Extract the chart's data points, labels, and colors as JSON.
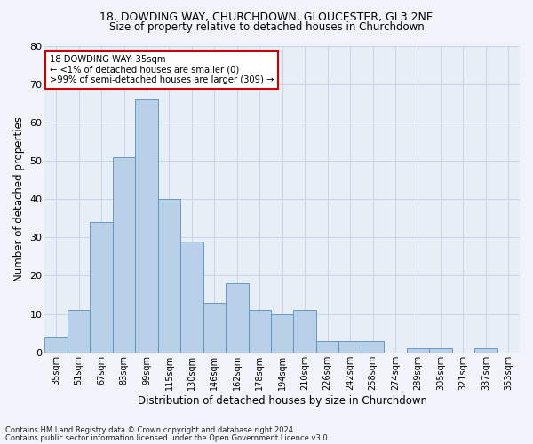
{
  "title1": "18, DOWDING WAY, CHURCHDOWN, GLOUCESTER, GL3 2NF",
  "title2": "Size of property relative to detached houses in Churchdown",
  "xlabel": "Distribution of detached houses by size in Churchdown",
  "ylabel": "Number of detached properties",
  "categories": [
    "35sqm",
    "51sqm",
    "67sqm",
    "83sqm",
    "99sqm",
    "115sqm",
    "130sqm",
    "146sqm",
    "162sqm",
    "178sqm",
    "194sqm",
    "210sqm",
    "226sqm",
    "242sqm",
    "258sqm",
    "274sqm",
    "289sqm",
    "305sqm",
    "321sqm",
    "337sqm",
    "353sqm"
  ],
  "values": [
    4,
    11,
    34,
    51,
    66,
    40,
    29,
    13,
    18,
    11,
    10,
    11,
    3,
    3,
    3,
    0,
    1,
    1,
    0,
    1,
    0
  ],
  "bar_color": "#b8d0e8",
  "bar_edge_color": "#5a8fc0",
  "ylim": [
    0,
    80
  ],
  "yticks": [
    0,
    10,
    20,
    30,
    40,
    50,
    60,
    70,
    80
  ],
  "annotation_title": "18 DOWDING WAY: 35sqm",
  "annotation_line1": "← <1% of detached houses are smaller (0)",
  "annotation_line2": ">99% of semi-detached houses are larger (309) →",
  "annotation_box_facecolor": "#ffffff",
  "annotation_box_edgecolor": "#cc0000",
  "footnote1": "Contains HM Land Registry data © Crown copyright and database right 2024.",
  "footnote2": "Contains public sector information licensed under the Open Government Licence v3.0.",
  "grid_color": "#c8d4e8",
  "background_color": "#e8eef6",
  "fig_facecolor": "#f0f4fa"
}
